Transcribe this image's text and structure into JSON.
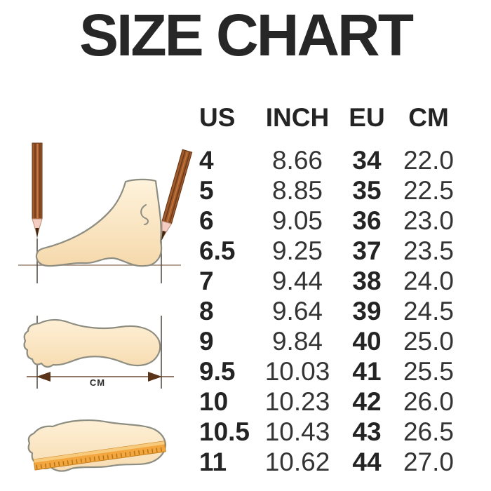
{
  "title": "SIZE CHART",
  "chart_data": {
    "type": "table",
    "title": "SIZE CHART",
    "columns": [
      "US",
      "INCH",
      "EU",
      "CM"
    ],
    "rows": [
      [
        "4",
        "8.66",
        "34",
        "22.0"
      ],
      [
        "5",
        "8.85",
        "35",
        "22.5"
      ],
      [
        "6",
        "9.05",
        "36",
        "23.0"
      ],
      [
        "6.5",
        "9.25",
        "37",
        "23.5"
      ],
      [
        "7",
        "9.44",
        "38",
        "24.0"
      ],
      [
        "8",
        "9.64",
        "39",
        "24.5"
      ],
      [
        "9",
        "9.84",
        "40",
        "25.0"
      ],
      [
        "9.5",
        "10.03",
        "41",
        "25.5"
      ],
      [
        "10",
        "10.23",
        "42",
        "26.0"
      ],
      [
        "10.5",
        "10.43",
        "43",
        "26.5"
      ],
      [
        "11",
        "10.62",
        "44",
        "27.0"
      ]
    ]
  },
  "illustrations": {
    "cm_arrow_label": "CM",
    "foot_profile_icon": "foot-side-measure-illustration",
    "footprint_cm_icon": "footprint-length-cm-illustration",
    "footprint_ruler_icon": "footprint-ruler-illustration"
  },
  "colors": {
    "text": "#262626",
    "foot_fill_light": "#FEF3DC",
    "foot_fill_dark": "#F6D9AC",
    "foot_outline": "#8D8D81",
    "pencil_brown": "#A05A2C",
    "pencil_stripe": "#6E3A18",
    "pencil_tip_pink": "#F4CCC2",
    "ruler_orange": "#F3A63E",
    "ruler_highlight": "#F8CB7C",
    "arrow_brown": "#5A3419",
    "measure_line": "#8A7158",
    "background": "#FFFFFF"
  }
}
